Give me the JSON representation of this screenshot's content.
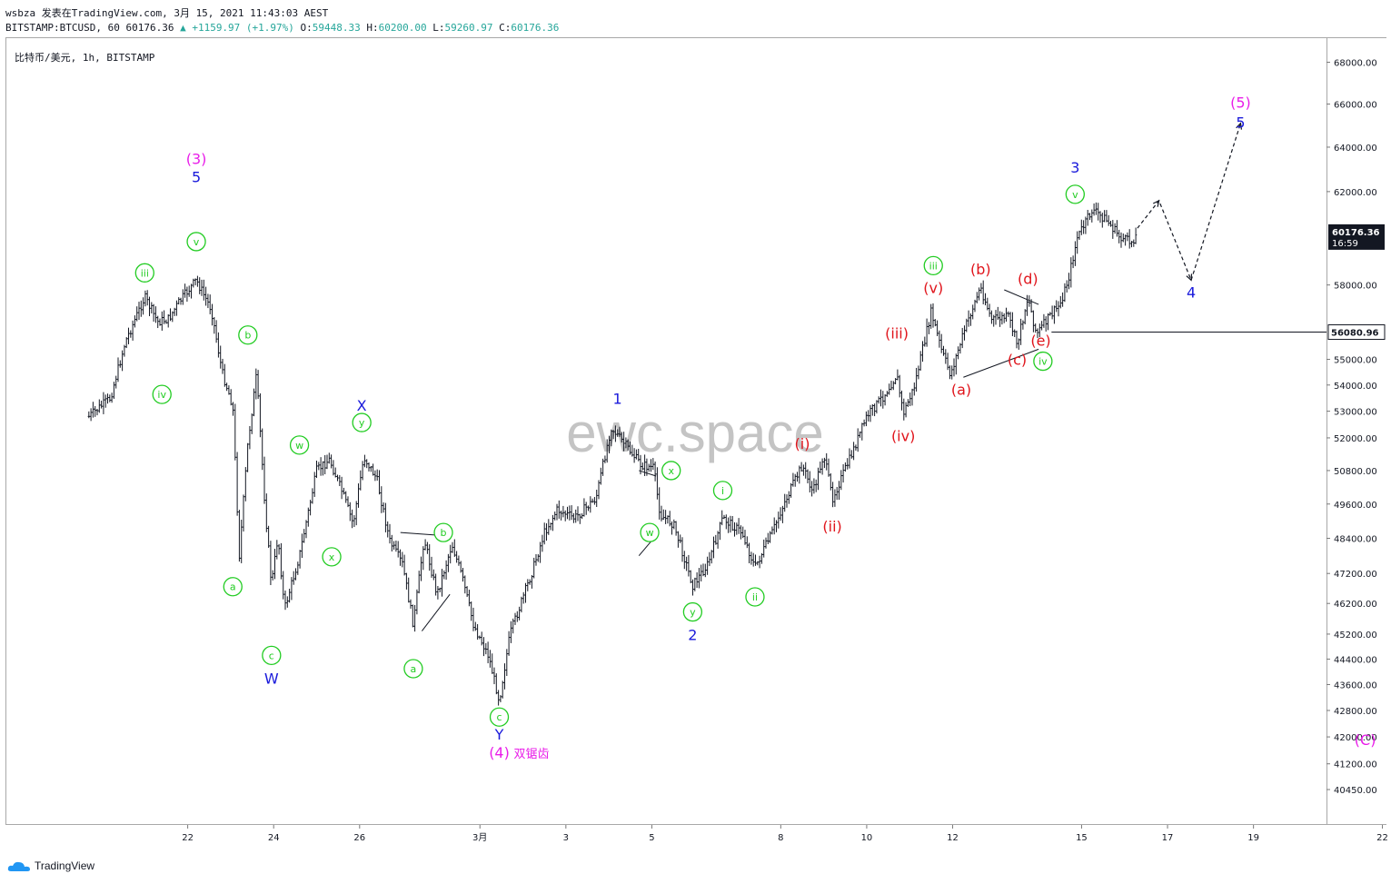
{
  "header": {
    "line1": "wsbza 发表在TradingView.com, 3月 15, 2021 11:43:03 AEST",
    "symbol": "BITSTAMP:BTCUSD, 60",
    "last": "60176.36",
    "change": "▲ +1159.97 (+1.97%)",
    "o_label": "O:",
    "o": "59448.33",
    "h_label": "H:",
    "h": "60200.00",
    "l_label": "L:",
    "l": "59260.97",
    "c_label": "C:",
    "c": "60176.36"
  },
  "legend": "比特币/美元, 1h, BITSTAMP",
  "watermark": "ewc.space",
  "brand": "TradingView",
  "colors": {
    "up": "#26a69a",
    "bars": "#131722",
    "blue": "#1a1adb",
    "green": "#22cc22",
    "red": "#e0141b",
    "magenta": "#e91ee9"
  },
  "chart_data": {
    "type": "ohlc",
    "title": "比特币/美元, 1h, BITSTAMP",
    "y_scale": "log",
    "ylim": [
      39800,
      68600
    ],
    "y_ticks": [
      68000,
      66000,
      64000,
      62000,
      58000,
      55000,
      54000,
      53000,
      52000,
      50800,
      49600,
      48400,
      47200,
      46200,
      45200,
      44400,
      43600,
      42800,
      42000,
      41200,
      40450
    ],
    "y_tick_labels": [
      "68000.00",
      "66000.00",
      "64000.00",
      "62000.00",
      "58000.00",
      "55000.00",
      "54000.00",
      "53000.00",
      "52000.00",
      "50800.00",
      "49600.00",
      "48400.00",
      "47200.00",
      "46200.00",
      "45200.00",
      "44400.00",
      "43600.00",
      "42800.00",
      "42000.00",
      "41200.00",
      "40450.00"
    ],
    "x_ticks": [
      {
        "label": "22",
        "d": 2
      },
      {
        "label": "24",
        "d": 4
      },
      {
        "label": "26",
        "d": 6
      },
      {
        "label": "3月",
        "d": 8.8
      },
      {
        "label": "3",
        "d": 10.8
      },
      {
        "label": "5",
        "d": 12.8
      },
      {
        "label": "8",
        "d": 15.8
      },
      {
        "label": "10",
        "d": 17.8
      },
      {
        "label": "12",
        "d": 19.8
      },
      {
        "label": "15",
        "d": 22.8
      },
      {
        "label": "17",
        "d": 24.8
      },
      {
        "label": "19",
        "d": 26.8
      },
      {
        "label": "22",
        "d": 29.8
      }
    ],
    "price_label": {
      "value": 60176.36,
      "text": "60176.36",
      "countdown": "16:59"
    },
    "level_line": {
      "value": 56080.96,
      "text": "56080.96",
      "from_d": 22.1
    },
    "path": [
      [
        -0.3,
        52800
      ],
      [
        0.2,
        53500
      ],
      [
        0.55,
        55700
      ],
      [
        1.0,
        57500
      ],
      [
        1.3,
        56500
      ],
      [
        1.55,
        56600
      ],
      [
        1.8,
        57300
      ],
      [
        2.2,
        58200
      ],
      [
        2.55,
        57000
      ],
      [
        2.8,
        54500
      ],
      [
        3.05,
        53200
      ],
      [
        3.2,
        47800
      ],
      [
        3.4,
        51800
      ],
      [
        3.6,
        54400
      ],
      [
        3.8,
        49500
      ],
      [
        3.95,
        46800
      ],
      [
        4.1,
        48500
      ],
      [
        4.25,
        46000
      ],
      [
        4.6,
        47800
      ],
      [
        5.0,
        50800
      ],
      [
        5.3,
        51200
      ],
      [
        5.6,
        50000
      ],
      [
        5.85,
        48900
      ],
      [
        6.1,
        51300
      ],
      [
        6.4,
        50500
      ],
      [
        6.7,
        48300
      ],
      [
        7.0,
        47500
      ],
      [
        7.25,
        45500
      ],
      [
        7.5,
        48400
      ],
      [
        7.8,
        46500
      ],
      [
        8.15,
        48200
      ],
      [
        8.4,
        47000
      ],
      [
        8.65,
        45500
      ],
      [
        9.0,
        44500
      ],
      [
        9.25,
        43100
      ],
      [
        9.5,
        45200
      ],
      [
        10.0,
        47200
      ],
      [
        10.3,
        48600
      ],
      [
        10.6,
        49400
      ],
      [
        11.0,
        49100
      ],
      [
        11.5,
        49800
      ],
      [
        11.85,
        52400
      ],
      [
        12.3,
        51500
      ],
      [
        12.55,
        51000
      ],
      [
        12.85,
        50900
      ],
      [
        12.9,
        50200
      ],
      [
        13.0,
        49200
      ],
      [
        13.3,
        48900
      ],
      [
        13.5,
        48000
      ],
      [
        13.75,
        46800
      ],
      [
        14.1,
        47500
      ],
      [
        14.45,
        49100
      ],
      [
        14.9,
        48600
      ],
      [
        15.2,
        47400
      ],
      [
        15.6,
        48600
      ],
      [
        15.9,
        49700
      ],
      [
        16.3,
        51000
      ],
      [
        16.55,
        50000
      ],
      [
        16.8,
        51400
      ],
      [
        17.0,
        49800
      ],
      [
        17.4,
        51200
      ],
      [
        17.8,
        52800
      ],
      [
        18.2,
        53600
      ],
      [
        18.5,
        54400
      ],
      [
        18.65,
        52900
      ],
      [
        18.9,
        53900
      ],
      [
        19.3,
        56900
      ],
      [
        19.55,
        55300
      ],
      [
        19.75,
        54400
      ],
      [
        20.1,
        56300
      ],
      [
        20.45,
        57900
      ],
      [
        20.7,
        56600
      ],
      [
        21.1,
        56700
      ],
      [
        21.3,
        55600
      ],
      [
        21.55,
        57500
      ],
      [
        21.75,
        56000
      ],
      [
        22.05,
        56700
      ],
      [
        22.3,
        57200
      ],
      [
        22.5,
        58300
      ],
      [
        22.7,
        60000
      ],
      [
        23.05,
        61200
      ],
      [
        23.35,
        60800
      ],
      [
        23.7,
        60000
      ],
      [
        23.95,
        59800
      ],
      [
        24.1,
        60176
      ]
    ],
    "forecast": [
      [
        24.1,
        60400
      ],
      [
        24.6,
        61600
      ],
      [
        25.35,
        58200
      ],
      [
        26.5,
        65100
      ]
    ],
    "channel_lines": [
      {
        "a": [
          21.0,
          57800
        ],
        "b": [
          21.8,
          57200
        ]
      },
      {
        "a": [
          20.05,
          54300
        ],
        "b": [
          21.8,
          55400
        ]
      },
      {
        "a": [
          6.95,
          48600
        ],
        "b": [
          7.9,
          48500
        ]
      },
      {
        "a": [
          7.45,
          45300
        ],
        "b": [
          8.1,
          46500
        ]
      },
      {
        "a": [
          12.5,
          50800
        ],
        "b": [
          12.9,
          50600
        ]
      },
      {
        "a": [
          12.5,
          47800
        ],
        "b": [
          12.9,
          48500
        ]
      }
    ],
    "annotations": [
      {
        "text": "(3)",
        "d": 2.2,
        "v": 63200,
        "color": "magenta",
        "dy": -6
      },
      {
        "text": "5",
        "d": 2.2,
        "v": 63200,
        "color": "blue",
        "dy": 14
      },
      {
        "text": "v",
        "d": 2.2,
        "v": 58900,
        "color": "green",
        "circle": true,
        "dy": -24
      },
      {
        "text": "iii",
        "d": 1.0,
        "v": 57600,
        "color": "green",
        "circle": true,
        "dy": -24
      },
      {
        "text": "iv",
        "d": 1.4,
        "v": 54200,
        "color": "green",
        "circle": true,
        "dy": 16
      },
      {
        "text": "b",
        "d": 3.4,
        "v": 55100,
        "color": "green",
        "circle": true,
        "dy": -24
      },
      {
        "text": "a",
        "d": 3.05,
        "v": 47000,
        "color": "green",
        "circle": true,
        "dy": 8
      },
      {
        "text": "c",
        "d": 3.95,
        "v": 45100,
        "color": "green",
        "circle": true,
        "dy": 20
      },
      {
        "text": "W",
        "d": 3.95,
        "v": 45100,
        "color": "blue",
        "dy": 46
      },
      {
        "text": "w",
        "d": 4.6,
        "v": 51400,
        "color": "green",
        "circle": true,
        "dy": -10
      },
      {
        "text": "x",
        "d": 5.35,
        "v": 48200,
        "color": "green",
        "circle": true,
        "dy": 14
      },
      {
        "text": "y",
        "d": 6.05,
        "v": 52300,
        "color": "green",
        "circle": true,
        "dy": -8
      },
      {
        "text": "X",
        "d": 6.05,
        "v": 52300,
        "color": "blue",
        "dy": -26
      },
      {
        "text": "b",
        "d": 7.95,
        "v": 48600,
        "color": "green",
        "circle": true,
        "dy": 0
      },
      {
        "text": "a",
        "d": 7.25,
        "v": 44500,
        "color": "green",
        "circle": true,
        "dy": 14
      },
      {
        "text": "c",
        "d": 9.25,
        "v": 43100,
        "color": "green",
        "circle": true,
        "dy": 18
      },
      {
        "text": "Y",
        "d": 9.25,
        "v": 43100,
        "color": "blue",
        "dy": 38
      },
      {
        "text": "(4)",
        "d": 9.25,
        "v": 43100,
        "color": "magenta",
        "dy": 58
      },
      {
        "text": "双锯齿",
        "d": 10.0,
        "v": 43100,
        "color": "magenta",
        "dy": 58,
        "small": true
      },
      {
        "text": "1",
        "d": 12.0,
        "v": 52700,
        "color": "blue",
        "dy": -22
      },
      {
        "text": "x",
        "d": 13.25,
        "v": 50800,
        "color": "green",
        "circle": true,
        "dy": 0
      },
      {
        "text": "w",
        "d": 12.75,
        "v": 48600,
        "color": "green",
        "circle": true,
        "dy": 0
      },
      {
        "text": "y",
        "d": 13.75,
        "v": 46400,
        "color": "green",
        "circle": true,
        "dy": 16
      },
      {
        "text": "2",
        "d": 13.75,
        "v": 46400,
        "color": "blue",
        "dy": 42
      },
      {
        "text": "i",
        "d": 14.45,
        "v": 49500,
        "color": "green",
        "circle": true,
        "dy": -18
      },
      {
        "text": "ii",
        "d": 15.2,
        "v": 46900,
        "color": "green",
        "circle": true,
        "dy": 16
      },
      {
        "text": "(i)",
        "d": 16.3,
        "v": 51300,
        "color": "red",
        "dy": -14
      },
      {
        "text": "(ii)",
        "d": 17.0,
        "v": 49300,
        "color": "red",
        "dy": 16
      },
      {
        "text": "(iii)",
        "d": 18.5,
        "v": 55500,
        "color": "red",
        "dy": -14
      },
      {
        "text": "(iv)",
        "d": 18.65,
        "v": 52600,
        "color": "red",
        "dy": 16
      },
      {
        "text": "(v)",
        "d": 19.35,
        "v": 57400,
        "color": "red",
        "dy": -12
      },
      {
        "text": "iii",
        "d": 19.35,
        "v": 58200,
        "color": "green",
        "circle": true,
        "dy": -16
      },
      {
        "text": "(a)",
        "d": 20.0,
        "v": 54300,
        "color": "red",
        "dy": 14
      },
      {
        "text": "(b)",
        "d": 20.45,
        "v": 58100,
        "color": "red",
        "dy": -14
      },
      {
        "text": "(c)",
        "d": 21.3,
        "v": 55400,
        "color": "red",
        "dy": 12
      },
      {
        "text": "(d)",
        "d": 21.55,
        "v": 57700,
        "color": "red",
        "dy": -14
      },
      {
        "text": "(e)",
        "d": 21.85,
        "v": 56000,
        "color": "red",
        "dy": 8
      },
      {
        "text": "iv",
        "d": 21.9,
        "v": 55500,
        "color": "green",
        "circle": true,
        "dy": 16
      },
      {
        "text": "v",
        "d": 22.65,
        "v": 61400,
        "color": "green",
        "circle": true,
        "dy": -12
      },
      {
        "text": "3",
        "d": 22.65,
        "v": 62400,
        "color": "blue",
        "dy": -16
      },
      {
        "text": "4",
        "d": 25.35,
        "v": 58200,
        "color": "blue",
        "dy": 14
      },
      {
        "text": "(5)",
        "d": 26.5,
        "v": 65100,
        "color": "magenta",
        "dy": -22
      },
      {
        "text": "5",
        "d": 26.5,
        "v": 65100,
        "color": "blue",
        "dy": 0
      },
      {
        "text": "(C)",
        "d": 29.4,
        "v": 41900,
        "color": "magenta",
        "dy": 0
      }
    ]
  }
}
